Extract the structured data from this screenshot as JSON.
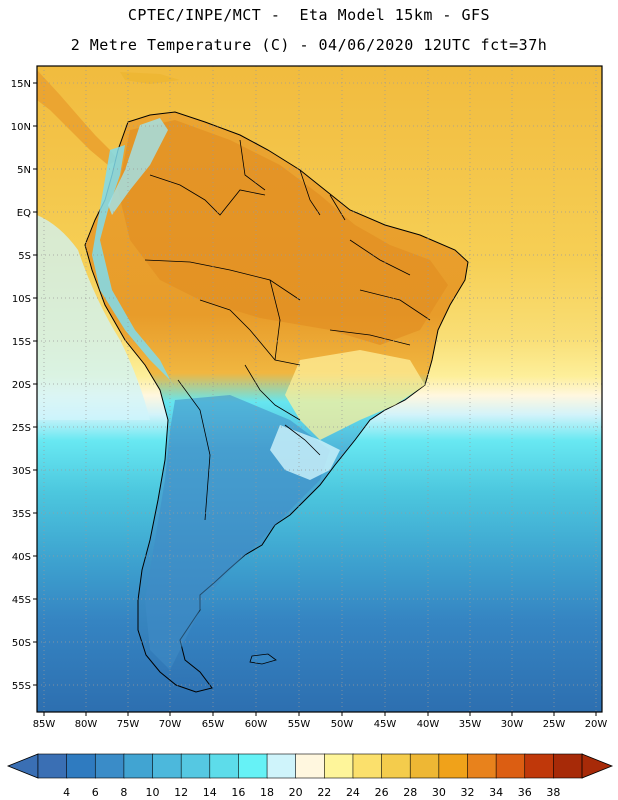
{
  "header": {
    "title_line1": "CPTEC/INPE/MCT -  Eta Model 15km - GFS",
    "title_line2": "2 Metre Temperature (C) - 04/06/2020 12UTC fct=37h"
  },
  "map": {
    "lat_labels": [
      "15N",
      "10N",
      "5N",
      "EQ",
      "5S",
      "10S",
      "15S",
      "20S",
      "25S",
      "30S",
      "35S",
      "40S",
      "45S",
      "50S",
      "55S"
    ],
    "lon_labels": [
      "85W",
      "80W",
      "75W",
      "70W",
      "65W",
      "60W",
      "55W",
      "50W",
      "45W",
      "40W",
      "35W",
      "30W",
      "25W",
      "20W"
    ]
  },
  "colorbar": {
    "ticks": [
      "4",
      "6",
      "8",
      "10",
      "12",
      "14",
      "16",
      "18",
      "20",
      "22",
      "24",
      "26",
      "28",
      "30",
      "32",
      "34",
      "36",
      "38"
    ],
    "colors": [
      "#3a6fb4",
      "#2f7bc0",
      "#3a8cc8",
      "#41a4d2",
      "#4cb8dc",
      "#55c8e2",
      "#5ddcea",
      "#66f2f6",
      "#cff4fb",
      "#fff7df",
      "#fef59a",
      "#fbe06c",
      "#f4cc4c",
      "#eeb734",
      "#f0a21a",
      "#e8821c",
      "#dc5e12",
      "#c0380a",
      "#a72a08"
    ],
    "low_arrow_color": "#3a6fb4",
    "high_arrow_color": "#a72a08"
  }
}
